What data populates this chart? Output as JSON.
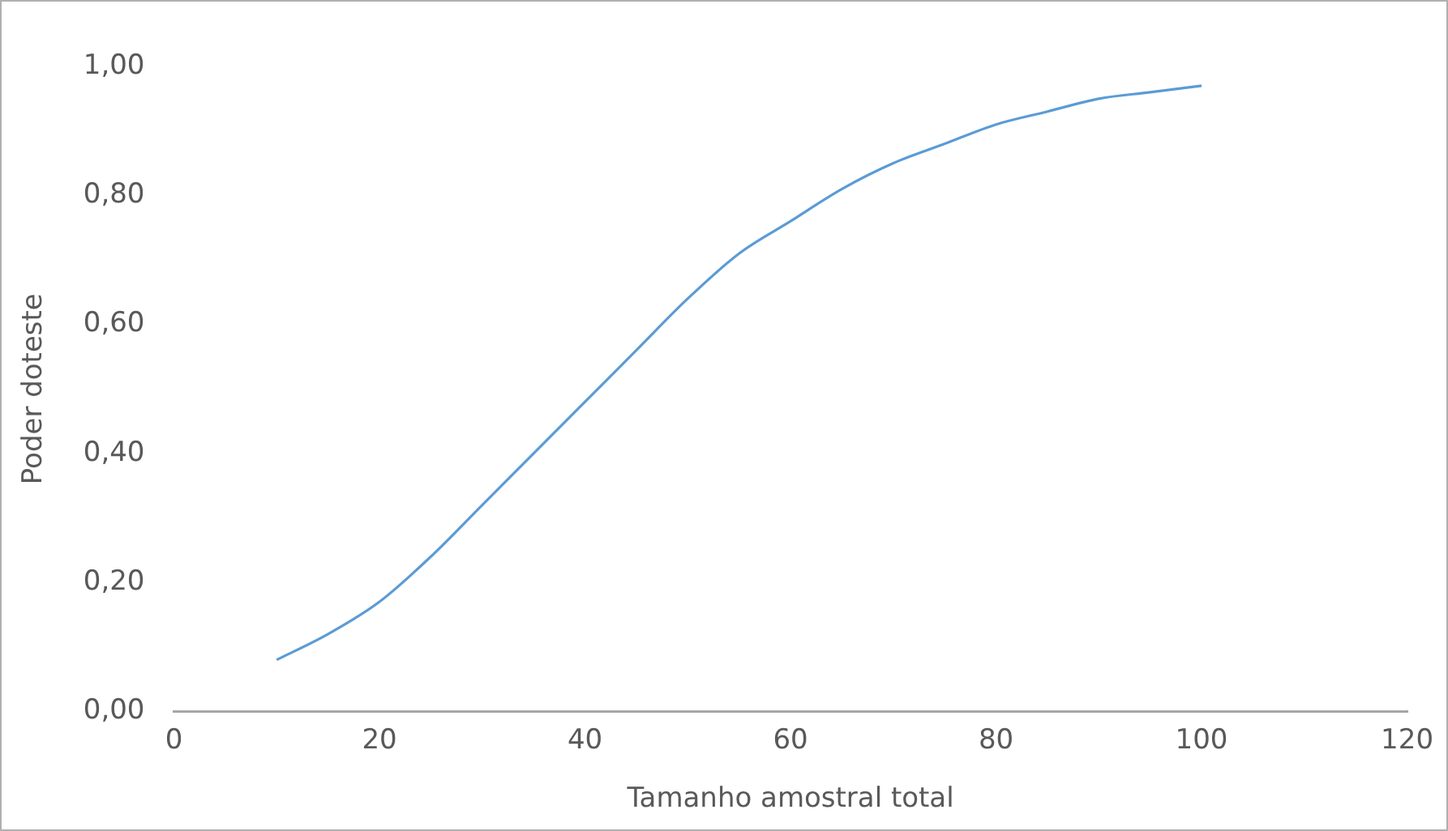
{
  "chart_data": {
    "type": "line",
    "xlabel": "Tamanho amostral total",
    "ylabel": "Poder doteste",
    "x": [
      10,
      15,
      20,
      25,
      30,
      35,
      40,
      45,
      50,
      55,
      60,
      65,
      70,
      75,
      80,
      85,
      90,
      95,
      100
    ],
    "values": [
      0.08,
      0.12,
      0.17,
      0.24,
      0.32,
      0.4,
      0.48,
      0.56,
      0.64,
      0.71,
      0.76,
      0.81,
      0.85,
      0.88,
      0.91,
      0.93,
      0.95,
      0.96,
      0.97
    ],
    "color": "#5b9bd5",
    "xlim": [
      0,
      120
    ],
    "xticks": [
      0,
      20,
      40,
      60,
      80,
      100,
      120
    ],
    "ylim": [
      0,
      1
    ],
    "yticks": [
      {
        "value": 0,
        "label": "0,00"
      },
      {
        "value": 0.2,
        "label": "0,20"
      },
      {
        "value": 0.4,
        "label": "0,40"
      },
      {
        "value": 0.6,
        "label": "0,60"
      },
      {
        "value": 0.8,
        "label": "0,80"
      },
      {
        "value": 1,
        "label": "1,00"
      }
    ],
    "grid": false,
    "legend": false,
    "marker": "none",
    "line_style": "solid"
  }
}
